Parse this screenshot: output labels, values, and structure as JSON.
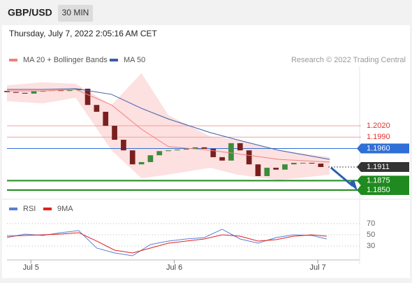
{
  "header": {
    "symbol": "GBP/USD",
    "timeframe": "30 MIN",
    "timestamp": "Thursday, July 7, 2022 2:05:16 AM CET"
  },
  "chart_data": [
    {
      "type": "candlestick",
      "source": "Research © 2022 Trading Central",
      "xlim": [
        0,
        118
      ],
      "ylim": [
        1.1826,
        1.2177
      ],
      "up_color": "#3c8c3c",
      "down_color": "#7a1f1f",
      "x": [
        0,
        3,
        6,
        9,
        12,
        15,
        18,
        21,
        24,
        27,
        30,
        33,
        36,
        39,
        42,
        45,
        48,
        51,
        54,
        57,
        60,
        63,
        66,
        69,
        72,
        75,
        78,
        81,
        84,
        87,
        90,
        93,
        96,
        99,
        102,
        105
      ],
      "open": [
        1.2112,
        1.2109,
        1.2107,
        1.2105,
        1.2111,
        1.2112,
        1.2114,
        1.2112,
        1.2114,
        1.2118,
        1.2075,
        1.2057,
        1.202,
        1.1983,
        1.1955,
        1.1918,
        1.1924,
        1.1942,
        1.1953,
        1.1955,
        1.1957,
        1.1959,
        1.1963,
        1.1959,
        1.1937,
        1.1928,
        1.1974,
        1.1955,
        1.1918,
        1.1887,
        1.1909,
        1.1904,
        1.1918,
        1.1922,
        1.1922,
        1.192
      ],
      "close": [
        1.2109,
        1.2107,
        1.2105,
        1.2111,
        1.2112,
        1.2114,
        1.2112,
        1.2114,
        1.2118,
        1.2075,
        1.2057,
        1.202,
        1.1983,
        1.1955,
        1.1918,
        1.1924,
        1.1942,
        1.1953,
        1.1955,
        1.1957,
        1.1959,
        1.1963,
        1.1959,
        1.1937,
        1.1928,
        1.1974,
        1.1955,
        1.1918,
        1.1887,
        1.1909,
        1.1904,
        1.1918,
        1.1922,
        1.1922,
        1.192,
        1.1911
      ],
      "series": [
        {
          "name": "MA 20 + Bollinger Bands",
          "color": "#f08080",
          "band_color": "#fde0e0",
          "x": [
            0,
            12,
            23,
            35,
            45,
            54,
            68,
            77,
            91,
            108
          ],
          "values": [
            1.2112,
            1.2112,
            1.2116,
            1.2075,
            1.2011,
            1.1965,
            1.1955,
            1.1946,
            1.1931,
            1.1924
          ],
          "upper": [
            1.2127,
            1.2135,
            1.2131,
            1.2075,
            1.2159,
            1.2048,
            1.1992,
            1.1983,
            1.1955,
            1.1937
          ],
          "lower": [
            1.2085,
            1.2079,
            1.2094,
            1.1955,
            1.1881,
            1.1891,
            1.1909,
            1.1891,
            1.1876,
            1.1891
          ]
        },
        {
          "name": "MA 50",
          "color": "#3a5ea8",
          "x": [
            0,
            12,
            23,
            35,
            45,
            54,
            68,
            77,
            91,
            108
          ],
          "values": [
            1.2116,
            1.2116,
            1.2118,
            1.2103,
            1.2066,
            1.2038,
            1.2002,
            1.1983,
            1.1955,
            1.1931
          ]
        }
      ],
      "levels": [
        {
          "value": 1.202,
          "label": "1.2020",
          "color": "#e03030",
          "line_color": "#f4a0a0",
          "box": false
        },
        {
          "value": 1.199,
          "label": "1.1990",
          "color": "#e03030",
          "line_color": "#f4a0a0",
          "box": false
        },
        {
          "value": 1.196,
          "label": "1.1960",
          "color": "#2f6fd6",
          "line_color": "#2f6fd6",
          "box": true
        },
        {
          "value": 1.1911,
          "label": "1.1911",
          "color": "#333333",
          "line_color": "#555555",
          "box": true,
          "dashed": true
        },
        {
          "value": 1.1875,
          "label": "1.1875",
          "color": "#1f8a1f",
          "line_color": "#1f8a1f",
          "box": true
        },
        {
          "value": 1.185,
          "label": "1.1850",
          "color": "#1f8a1f",
          "line_color": "#1f8a1f",
          "box": true
        }
      ]
    },
    {
      "type": "line",
      "xlim": [
        0,
        118
      ],
      "ylim": [
        5,
        105
      ],
      "yticks": [
        30,
        50,
        70
      ],
      "grid": true,
      "xticks": [
        {
          "value": 8,
          "label": "Jul 5"
        },
        {
          "value": 56,
          "label": "Jul 6"
        },
        {
          "value": 104,
          "label": "Jul 7"
        }
      ],
      "x": [
        0,
        6,
        12,
        18,
        24,
        30,
        36,
        42,
        48,
        54,
        60,
        66,
        72,
        78,
        84,
        90,
        96,
        102,
        107
      ],
      "series": [
        {
          "name": "RSI",
          "color": "#5b7fd6",
          "values": [
            45,
            51.3,
            48.8,
            53.8,
            57.5,
            26.3,
            17.5,
            12.5,
            32.5,
            38.8,
            42.5,
            45,
            60,
            42.5,
            35,
            45,
            50,
            48.8,
            42.5
          ]
        },
        {
          "name": "9MA",
          "color": "#e02020",
          "values": [
            47.5,
            48.8,
            50,
            51.3,
            53.8,
            38.8,
            22.5,
            17.5,
            26.3,
            35,
            38.8,
            42.5,
            50,
            47.5,
            38.8,
            41.3,
            47.5,
            50,
            47.5
          ]
        }
      ]
    }
  ]
}
